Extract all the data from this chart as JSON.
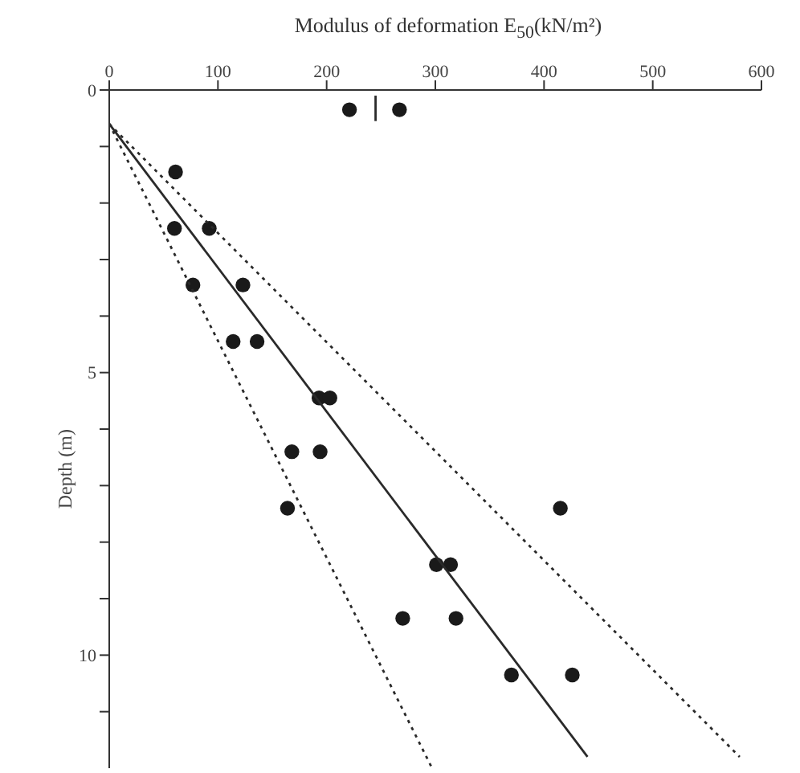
{
  "chart_data": {
    "type": "scatter",
    "xlabel": "Modulus of deformation E$_{50}$(kN/m²)",
    "ylabel": "Depth (m)",
    "xlim": [
      0,
      600
    ],
    "xticks": [
      0,
      100,
      200,
      300,
      400,
      500,
      600
    ],
    "ylim": [
      12,
      0
    ],
    "yticks": [
      0,
      {
        "value": 1,
        "label": null
      },
      {
        "value": 2,
        "label": null
      },
      {
        "value": 3,
        "label": null
      },
      {
        "value": 4,
        "label": null
      },
      5,
      {
        "value": 6,
        "label": null
      },
      {
        "value": 7,
        "label": null
      },
      {
        "value": 8,
        "label": null
      },
      {
        "value": 9,
        "label": null
      },
      10,
      {
        "value": 11,
        "label": null
      }
    ],
    "series": [
      {
        "marker": "circle",
        "color": "#1a1a1a",
        "x": [
          221,
          267,
          61,
          60,
          92,
          77,
          123,
          114,
          136,
          193,
          203,
          168,
          194,
          164,
          415,
          301,
          314,
          270,
          319,
          370,
          426
        ],
        "values": [
          0.35,
          0.35,
          1.45,
          2.45,
          2.45,
          3.45,
          3.45,
          4.45,
          4.45,
          5.45,
          5.45,
          6.4,
          6.4,
          7.4,
          7.4,
          8.4,
          8.4,
          9.35,
          9.35,
          10.35,
          10.35
        ]
      },
      {
        "type": "line",
        "line_style": "solid",
        "color": "#2a2a2a",
        "x": [
          0,
          440
        ],
        "values": [
          0.6,
          11.8
        ]
      },
      {
        "type": "line",
        "line_style": "dotted",
        "color": "#2a2a2a",
        "x": [
          0,
          297
        ],
        "values": [
          0.6,
          12
        ]
      },
      {
        "type": "line",
        "line_style": "dotted",
        "color": "#2a2a2a",
        "x": [
          0,
          580
        ],
        "values": [
          0.6,
          11.8
        ]
      },
      {
        "type": "line",
        "line_style": "solid",
        "color": "#2a2a2a",
        "x": [
          245,
          245
        ],
        "values": [
          0.1,
          0.55
        ]
      }
    ]
  }
}
